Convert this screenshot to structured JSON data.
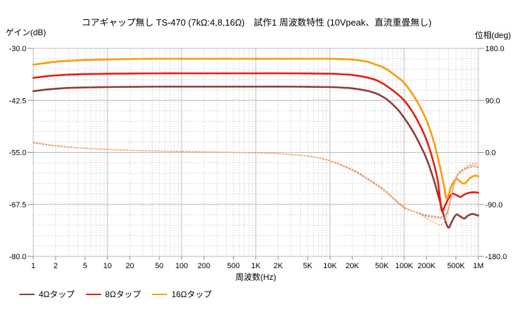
{
  "title": "コアギャップ無し TS-470  (7kΩ:4,8,16Ω)　試作1 周波数特性 (10Vpeak、直流重畳無し)",
  "chart_data": {
    "type": "line",
    "title": "コアギャップ無し TS-470  (7kΩ:4,8,16Ω)　試作1 周波数特性 (10Vpeak、直流重畳無し)",
    "x_axis": {
      "label": "周波数(Hz)",
      "scale": "log",
      "range": [
        1,
        1000000
      ],
      "tick_values": [
        1,
        2,
        5,
        10,
        20,
        50,
        100,
        200,
        500,
        1000,
        2000,
        5000,
        10000,
        20000,
        50000,
        100000,
        200000,
        500000,
        1000000
      ],
      "tick_labels": [
        "1",
        "2",
        "5",
        "10",
        "20",
        "50",
        "100",
        "200",
        "500",
        "1K",
        "2K",
        "5K",
        "10K",
        "20K",
        "50K",
        "100K",
        "200K",
        "500K",
        "1M"
      ]
    },
    "left_axis": {
      "label": "ゲイン(dB)",
      "range": [
        -80,
        -30
      ],
      "tick_values": [
        -30,
        -42.5,
        -55,
        -67.5,
        -80
      ],
      "tick_labels": [
        "-30.0",
        "-42.5",
        "-55.0",
        "-67.5",
        "-80.0"
      ],
      "minor_step_db": 2.5
    },
    "right_axis": {
      "label": "位相(deg)",
      "range": [
        -180,
        180
      ],
      "tick_values": [
        180,
        90,
        0,
        -90,
        -180
      ],
      "tick_labels": [
        "180.0",
        "90.0",
        "0.0",
        "-90.0",
        "-180.0"
      ]
    },
    "grid": {
      "major_color": "#b9b9b9",
      "minor_color": "#cfcfcf",
      "minor_style": "dotted"
    },
    "legend": {
      "position": "bottom-left",
      "items": [
        {
          "label": "4Ωタップ",
          "color": "#8f3a34"
        },
        {
          "label": "8Ωタップ",
          "color": "#e81b0c"
        },
        {
          "label": "16Ωタップ",
          "color": "#f5a216"
        }
      ]
    },
    "series": [
      {
        "name": "4Ωタップ ゲイン",
        "axis": "left",
        "style": "solid",
        "color": "#8f3a34",
        "width": 2.6,
        "points": [
          [
            1,
            -40.3
          ],
          [
            1.5,
            -39.9
          ],
          [
            2,
            -39.7
          ],
          [
            3,
            -39.5
          ],
          [
            5,
            -39.4
          ],
          [
            10,
            -39.3
          ],
          [
            20,
            -39.25
          ],
          [
            50,
            -39.2
          ],
          [
            100,
            -39.2
          ],
          [
            300,
            -39.2
          ],
          [
            1000,
            -39.2
          ],
          [
            3000,
            -39.2
          ],
          [
            10000,
            -39.3
          ],
          [
            15000,
            -39.45
          ],
          [
            20000,
            -39.6
          ],
          [
            30000,
            -40.1
          ],
          [
            40000,
            -40.7
          ],
          [
            50000,
            -41.5
          ],
          [
            60000,
            -42.4
          ],
          [
            80000,
            -44.5
          ],
          [
            100000,
            -46.7
          ],
          [
            130000,
            -49.8
          ],
          [
            160000,
            -52.8
          ],
          [
            200000,
            -56.5
          ],
          [
            250000,
            -61.5
          ],
          [
            300000,
            -66.5
          ],
          [
            350000,
            -70.8
          ],
          [
            395000,
            -73.1
          ],
          [
            440000,
            -71.6
          ],
          [
            480000,
            -70.4
          ],
          [
            515000,
            -69.9
          ],
          [
            560000,
            -70.3
          ],
          [
            645000,
            -70.9
          ],
          [
            700000,
            -70.4
          ],
          [
            760000,
            -70.0
          ],
          [
            840000,
            -69.8
          ],
          [
            920000,
            -70.0
          ],
          [
            1000000,
            -70.2
          ]
        ]
      },
      {
        "name": "8Ωタップ ゲイン",
        "axis": "left",
        "style": "solid",
        "color": "#e81b0c",
        "width": 2.6,
        "points": [
          [
            1,
            -37.1
          ],
          [
            1.5,
            -36.7
          ],
          [
            2,
            -36.5
          ],
          [
            3,
            -36.3
          ],
          [
            5,
            -36.2
          ],
          [
            10,
            -36.1
          ],
          [
            20,
            -36.05
          ],
          [
            50,
            -36.0
          ],
          [
            100,
            -36.0
          ],
          [
            300,
            -36.0
          ],
          [
            1000,
            -36.0
          ],
          [
            3000,
            -36.0
          ],
          [
            10000,
            -36.1
          ],
          [
            15000,
            -36.25
          ],
          [
            20000,
            -36.4
          ],
          [
            30000,
            -36.9
          ],
          [
            40000,
            -37.5
          ],
          [
            50000,
            -38.3
          ],
          [
            60000,
            -39.2
          ],
          [
            80000,
            -40.9
          ],
          [
            100000,
            -42.5
          ],
          [
            130000,
            -45.3
          ],
          [
            160000,
            -48.2
          ],
          [
            200000,
            -52.0
          ],
          [
            250000,
            -57.5
          ],
          [
            285000,
            -62.0
          ],
          [
            320000,
            -68.9
          ],
          [
            355000,
            -67.8
          ],
          [
            390000,
            -66.3
          ],
          [
            420000,
            -65.4
          ],
          [
            450000,
            -64.9
          ],
          [
            500000,
            -65.2
          ],
          [
            575000,
            -65.7
          ],
          [
            640000,
            -65.2
          ],
          [
            720000,
            -64.8
          ],
          [
            820000,
            -64.6
          ],
          [
            920000,
            -64.6
          ],
          [
            1000000,
            -64.7
          ]
        ]
      },
      {
        "name": "16Ωタップ ゲイン",
        "axis": "left",
        "style": "solid",
        "color": "#f5a216",
        "width": 2.8,
        "points": [
          [
            1,
            -33.9
          ],
          [
            1.5,
            -33.5
          ],
          [
            2,
            -33.2
          ],
          [
            3,
            -33.0
          ],
          [
            5,
            -32.8
          ],
          [
            10,
            -32.65
          ],
          [
            20,
            -32.55
          ],
          [
            50,
            -32.5
          ],
          [
            100,
            -32.5
          ],
          [
            300,
            -32.5
          ],
          [
            1000,
            -32.5
          ],
          [
            3000,
            -32.5
          ],
          [
            10000,
            -32.5
          ],
          [
            15000,
            -32.6
          ],
          [
            20000,
            -32.7
          ],
          [
            30000,
            -33.1
          ],
          [
            40000,
            -33.8
          ],
          [
            50000,
            -34.4
          ],
          [
            60000,
            -35.2
          ],
          [
            80000,
            -36.8
          ],
          [
            100000,
            -38.3
          ],
          [
            130000,
            -41.0
          ],
          [
            160000,
            -43.7
          ],
          [
            200000,
            -47.3
          ],
          [
            250000,
            -52.3
          ],
          [
            300000,
            -58.0
          ],
          [
            340000,
            -62.5
          ],
          [
            370000,
            -66.0
          ],
          [
            400000,
            -65.0
          ],
          [
            430000,
            -63.2
          ],
          [
            465000,
            -62.1
          ],
          [
            510000,
            -61.4
          ],
          [
            560000,
            -61.9
          ],
          [
            640000,
            -62.5
          ],
          [
            700000,
            -62.0
          ],
          [
            780000,
            -61.1
          ],
          [
            860000,
            -60.7
          ],
          [
            940000,
            -60.6
          ],
          [
            1000000,
            -60.8
          ]
        ]
      },
      {
        "name": "4Ωタップ 位相",
        "axis": "right",
        "style": "dotted",
        "color": "#b07a6e",
        "width": 1.3,
        "points": [
          [
            1,
            16.5
          ],
          [
            2,
            11
          ],
          [
            5,
            7
          ],
          [
            10,
            5
          ],
          [
            20,
            3.6
          ],
          [
            50,
            2.2
          ],
          [
            100,
            1.5
          ],
          [
            300,
            0.5
          ],
          [
            1000,
            -1
          ],
          [
            2000,
            -2.4
          ],
          [
            5000,
            -6.6
          ],
          [
            10000,
            -15
          ],
          [
            20000,
            -31
          ],
          [
            30000,
            -44
          ],
          [
            50000,
            -63
          ],
          [
            70000,
            -79
          ],
          [
            100000,
            -96
          ],
          [
            150000,
            -104
          ],
          [
            200000,
            -109
          ],
          [
            260000,
            -111
          ],
          [
            330000,
            -111.5
          ],
          [
            380000,
            -103
          ],
          [
            420000,
            -83
          ],
          [
            460000,
            -60
          ],
          [
            500000,
            -45
          ],
          [
            550000,
            -37
          ],
          [
            620000,
            -31.5
          ],
          [
            700000,
            -28
          ],
          [
            800000,
            -25.5
          ],
          [
            900000,
            -24.5
          ],
          [
            1000000,
            -26.5
          ]
        ]
      },
      {
        "name": "8Ωタップ 位相",
        "axis": "right",
        "style": "dotted",
        "color": "#f4948c",
        "width": 1.3,
        "points": [
          [
            1,
            17
          ],
          [
            2,
            11.5
          ],
          [
            5,
            7.2
          ],
          [
            10,
            5.2
          ],
          [
            20,
            3.8
          ],
          [
            50,
            2.3
          ],
          [
            100,
            1.6
          ],
          [
            300,
            0.6
          ],
          [
            1000,
            -0.8
          ],
          [
            2000,
            -2.2
          ],
          [
            5000,
            -6.3
          ],
          [
            10000,
            -14.5
          ],
          [
            20000,
            -30
          ],
          [
            30000,
            -43
          ],
          [
            50000,
            -62
          ],
          [
            70000,
            -78
          ],
          [
            100000,
            -95
          ],
          [
            150000,
            -105
          ],
          [
            200000,
            -111
          ],
          [
            260000,
            -113.5
          ],
          [
            330000,
            -114.5
          ],
          [
            375000,
            -107
          ],
          [
            410000,
            -89
          ],
          [
            445000,
            -65
          ],
          [
            480000,
            -48
          ],
          [
            520000,
            -38
          ],
          [
            570000,
            -32
          ],
          [
            640000,
            -27.5
          ],
          [
            720000,
            -23.5
          ],
          [
            800000,
            -21
          ],
          [
            900000,
            -18.5
          ],
          [
            1000000,
            -19.5
          ]
        ]
      },
      {
        "name": "16Ωタップ 位相",
        "axis": "right",
        "style": "dotted",
        "color": "#f8b45a",
        "width": 1.3,
        "points": [
          [
            1,
            18
          ],
          [
            2,
            12
          ],
          [
            5,
            7.5
          ],
          [
            10,
            5.5
          ],
          [
            20,
            4
          ],
          [
            50,
            2.5
          ],
          [
            100,
            1.8
          ],
          [
            300,
            0.8
          ],
          [
            1000,
            -0.6
          ],
          [
            2000,
            -2.0
          ],
          [
            5000,
            -6.0
          ],
          [
            10000,
            -14
          ],
          [
            20000,
            -29
          ],
          [
            30000,
            -42
          ],
          [
            50000,
            -61
          ],
          [
            70000,
            -77
          ],
          [
            100000,
            -94
          ],
          [
            140000,
            -103
          ],
          [
            200000,
            -114
          ],
          [
            250000,
            -121
          ],
          [
            300000,
            -125
          ],
          [
            340000,
            -122
          ],
          [
            375000,
            -112
          ],
          [
            410000,
            -93
          ],
          [
            445000,
            -72
          ],
          [
            480000,
            -54
          ],
          [
            520000,
            -42
          ],
          [
            570000,
            -34
          ],
          [
            640000,
            -29
          ],
          [
            720000,
            -25.5
          ],
          [
            800000,
            -23
          ],
          [
            880000,
            -21.5
          ],
          [
            950000,
            -22.5
          ],
          [
            1000000,
            -24
          ]
        ]
      }
    ]
  }
}
